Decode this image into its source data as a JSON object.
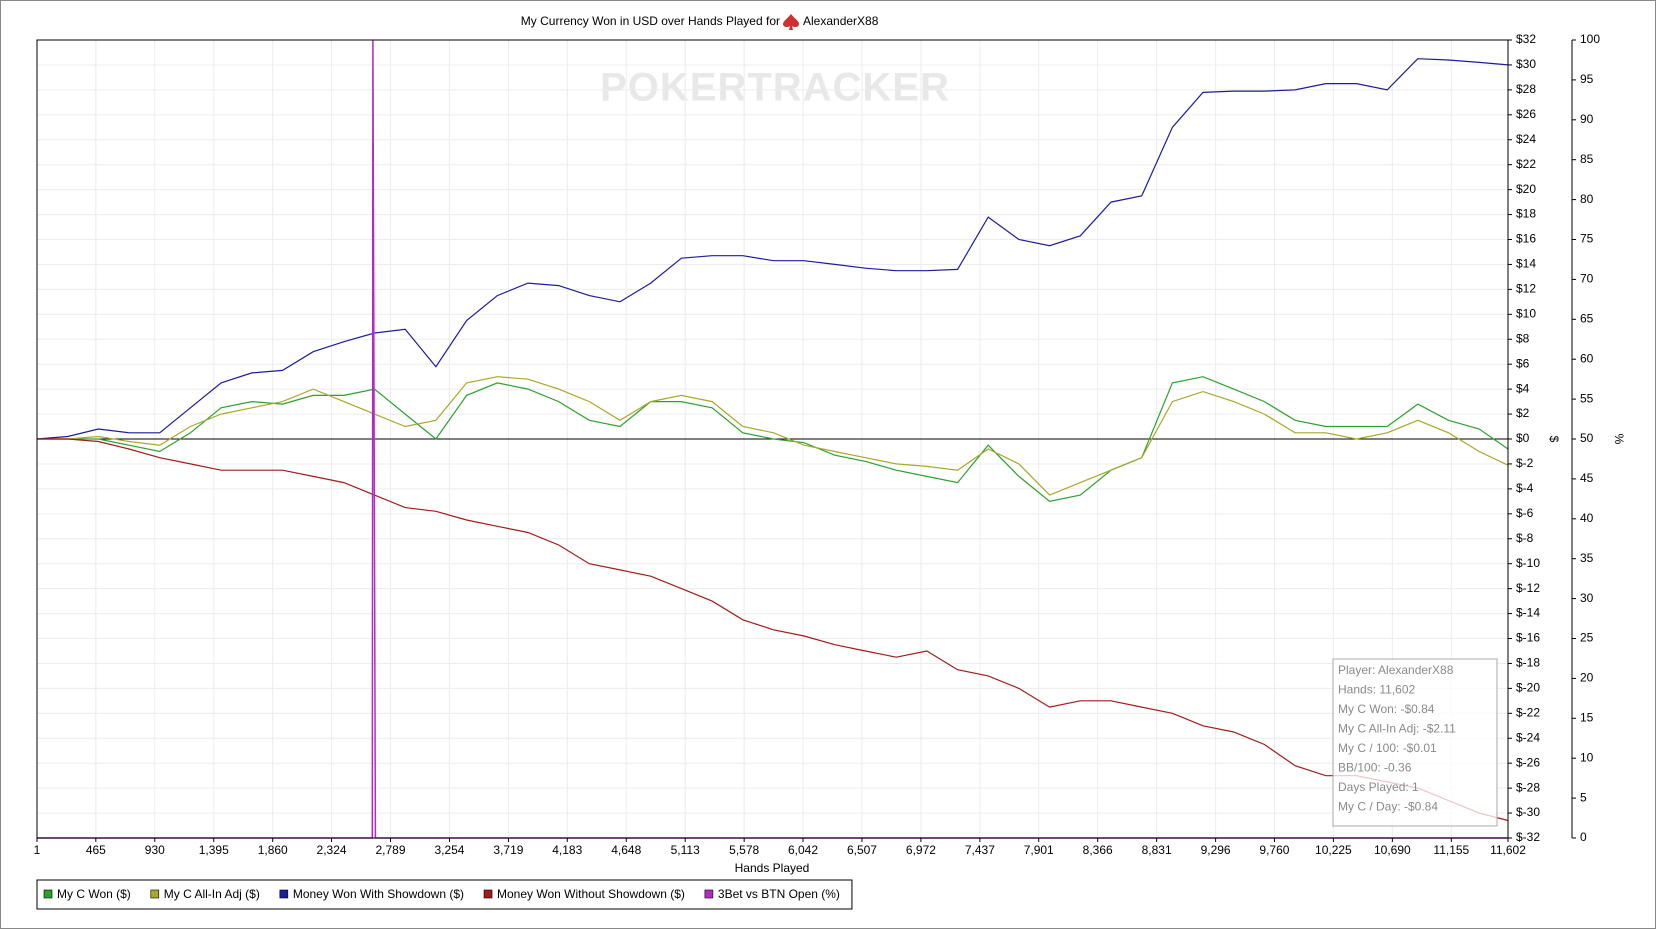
{
  "chart_data": {
    "type": "line",
    "title": "My Currency Won in USD over Hands Played for",
    "title_player": "AlexanderX88",
    "watermark": "POKERTRACKER",
    "xlabel": "Hands Played",
    "ylabel": "$",
    "y2label": "%",
    "grid": true,
    "legend": "bottom-left",
    "xlim": [
      1,
      11602
    ],
    "xticks": [
      1,
      465,
      930,
      {
        "value": 1395,
        "label": "1,395"
      },
      {
        "value": 1860,
        "label": "1,860"
      },
      {
        "value": 2324,
        "label": "2,324"
      },
      {
        "value": 2789,
        "label": "2,789"
      },
      {
        "value": 3254,
        "label": "3,254"
      },
      {
        "value": 3719,
        "label": "3,719"
      },
      {
        "value": 4183,
        "label": "4,183"
      },
      {
        "value": 4648,
        "label": "4,648"
      },
      {
        "value": 5113,
        "label": "5,113"
      },
      {
        "value": 5578,
        "label": "5,578"
      },
      {
        "value": 6042,
        "label": "6,042"
      },
      {
        "value": 6507,
        "label": "6,507"
      },
      {
        "value": 6972,
        "label": "6,972"
      },
      {
        "value": 7437,
        "label": "7,437"
      },
      {
        "value": 7901,
        "label": "7,901"
      },
      {
        "value": 8366,
        "label": "8,366"
      },
      {
        "value": 8831,
        "label": "8,831"
      },
      {
        "value": 9296,
        "label": "9,296"
      },
      {
        "value": 9760,
        "label": "9,760"
      },
      {
        "value": 10225,
        "label": "10,225"
      },
      {
        "value": 10690,
        "label": "10,690"
      },
      {
        "value": 11155,
        "label": "11,155"
      },
      {
        "value": 11602,
        "label": "11,602"
      }
    ],
    "ylim": [
      -32,
      32
    ],
    "yticks": [
      {
        "value": 32,
        "label": "$32"
      },
      {
        "value": 30,
        "label": "$30"
      },
      {
        "value": 28,
        "label": "$28"
      },
      {
        "value": 26,
        "label": "$26"
      },
      {
        "value": 24,
        "label": "$24"
      },
      {
        "value": 22,
        "label": "$22"
      },
      {
        "value": 20,
        "label": "$20"
      },
      {
        "value": 18,
        "label": "$18"
      },
      {
        "value": 16,
        "label": "$16"
      },
      {
        "value": 14,
        "label": "$14"
      },
      {
        "value": 12,
        "label": "$12"
      },
      {
        "value": 10,
        "label": "$10"
      },
      {
        "value": 8,
        "label": "$8"
      },
      {
        "value": 6,
        "label": "$6"
      },
      {
        "value": 4,
        "label": "$4"
      },
      {
        "value": 2,
        "label": "$2"
      },
      {
        "value": 0,
        "label": "$0"
      },
      {
        "value": -2,
        "label": "$-2"
      },
      {
        "value": -4,
        "label": "$-4"
      },
      {
        "value": -6,
        "label": "$-6"
      },
      {
        "value": -8,
        "label": "$-8"
      },
      {
        "value": -10,
        "label": "$-10"
      },
      {
        "value": -12,
        "label": "$-12"
      },
      {
        "value": -14,
        "label": "$-14"
      },
      {
        "value": -16,
        "label": "$-16"
      },
      {
        "value": -18,
        "label": "$-18"
      },
      {
        "value": -20,
        "label": "$-20"
      },
      {
        "value": -22,
        "label": "$-22"
      },
      {
        "value": -24,
        "label": "$-24"
      },
      {
        "value": -26,
        "label": "$-26"
      },
      {
        "value": -28,
        "label": "$-28"
      },
      {
        "value": -30,
        "label": "$-30"
      },
      {
        "value": -32,
        "label": "$-32"
      }
    ],
    "y2lim": [
      0,
      100
    ],
    "y2ticks": [
      100,
      95,
      90,
      85,
      80,
      75,
      70,
      65,
      60,
      55,
      50,
      45,
      40,
      35,
      30,
      25,
      20,
      15,
      10,
      5,
      0
    ],
    "x": [
      1,
      243,
      485,
      727,
      969,
      1211,
      1453,
      1695,
      1937,
      2179,
      2421,
      2663,
      2905,
      3147,
      3389,
      3631,
      3873,
      4115,
      4357,
      4599,
      4841,
      5083,
      5325,
      5567,
      5809,
      6051,
      6293,
      6535,
      6777,
      7019,
      7261,
      7503,
      7745,
      7987,
      8229,
      8471,
      8713,
      8955,
      9197,
      9439,
      9681,
      9923,
      10165,
      10407,
      10649,
      10891,
      11133,
      11375,
      11602
    ],
    "series": [
      {
        "name": "My C Won ($)",
        "color": "#2ea02e",
        "values": [
          0,
          0,
          0,
          -0.5,
          -1,
          0.5,
          2.5,
          3,
          2.8,
          3.5,
          3.5,
          4,
          2,
          0,
          3.5,
          4.5,
          4,
          3,
          1.5,
          1,
          3,
          3,
          2.5,
          0.5,
          0,
          -0.3,
          -1.3,
          -1.8,
          -2.5,
          -3,
          -3.5,
          -0.5,
          -3,
          -5,
          -4.5,
          -2.5,
          -1.5,
          4.5,
          5,
          4,
          3,
          1.5,
          1,
          1,
          1,
          2.8,
          1.5,
          0.8,
          -0.8
        ]
      },
      {
        "name": "My C All-In Adj ($)",
        "color": "#a8a82a",
        "values": [
          0,
          0,
          0.2,
          -0.2,
          -0.5,
          1,
          2,
          2.5,
          3,
          4,
          3,
          2,
          1,
          1.5,
          4.5,
          5,
          4.8,
          4,
          3,
          1.5,
          3,
          3.5,
          3,
          1,
          0.5,
          -0.5,
          -1,
          -1.5,
          -2,
          -2.2,
          -2.5,
          -0.8,
          -2,
          -4.5,
          -3.5,
          -2.5,
          -1.5,
          3,
          3.8,
          3,
          2,
          0.5,
          0.5,
          0,
          0.5,
          1.5,
          0.5,
          -1,
          -2.1
        ]
      },
      {
        "name": "Money Won With Showdown ($)",
        "color": "#1c1c9c",
        "values": [
          0,
          0.2,
          0.8,
          0.5,
          0.5,
          2.5,
          4.5,
          5.3,
          5.5,
          7,
          7.8,
          8.5,
          8.8,
          5.8,
          9.5,
          11.5,
          12.5,
          12.3,
          11.5,
          11,
          12.5,
          14.5,
          14.7,
          14.7,
          14.3,
          14.3,
          14,
          13.7,
          13.5,
          13.5,
          13.6,
          17.8,
          16,
          15.5,
          16.3,
          19,
          19.5,
          25,
          27.8,
          27.9,
          27.9,
          28,
          28.5,
          28.5,
          28,
          30.5,
          30.4,
          30.2,
          30
        ]
      },
      {
        "name": "Money Won Without Showdown ($)",
        "color": "#a01c1c",
        "values": [
          0,
          0,
          -0.2,
          -0.8,
          -1.5,
          -2,
          -2.5,
          -2.5,
          -2.5,
          -3,
          -3.5,
          -4.5,
          -5.5,
          -5.8,
          -6.5,
          -7,
          -7.5,
          -8.5,
          -10,
          -10.5,
          -11,
          -12,
          -13,
          -14.5,
          -15.3,
          -15.8,
          -16.5,
          -17,
          -17.5,
          -17,
          -18.5,
          -19,
          -20,
          -21.5,
          -21,
          -21,
          -21.5,
          -22,
          -23,
          -23.5,
          -24.5,
          -26.2,
          -27,
          -27,
          -27.5,
          -28,
          -29,
          -30,
          -30.6
        ]
      },
      {
        "name": "3Bet vs BTN Open (%)",
        "color": "#b02cc0",
        "axis": "y2",
        "x": [
          1,
          2645,
          2650,
          2670,
          11602
        ],
        "values": [
          0,
          0,
          100,
          0,
          0
        ]
      }
    ],
    "tooltip": [
      "Player: AlexanderX88",
      "Hands: 11,602",
      "My C Won: -$0.84",
      "My C All-In Adj: -$2.11",
      "My C / 100: -$0.01",
      "BB/100: -0.36",
      "Days Played: 1",
      "My C / Day: -$0.84"
    ]
  }
}
